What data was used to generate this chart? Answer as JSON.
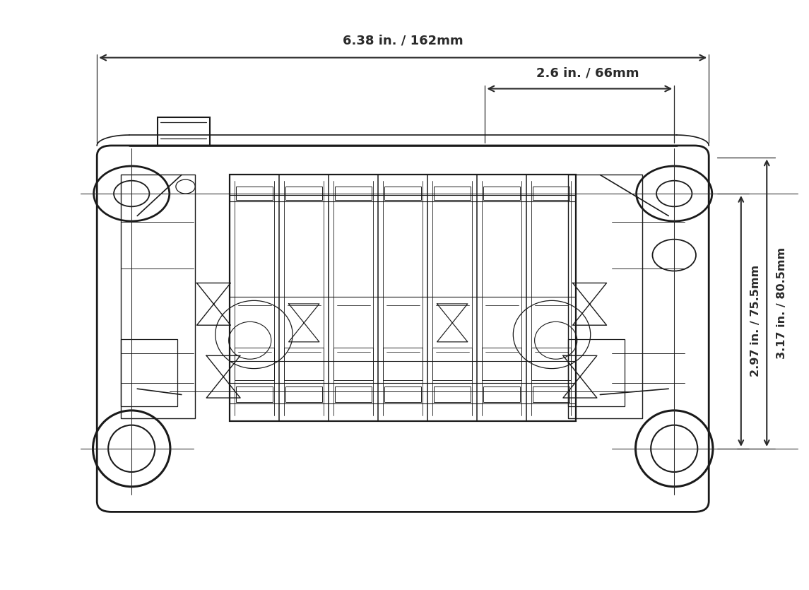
{
  "background_color": "#ffffff",
  "lc": "#1a1a1a",
  "dc": "#2a2a2a",
  "figsize": [
    11.45,
    8.35
  ],
  "dpi": 100,
  "dim1_label": "6.38 in. / 162mm",
  "dim2_label": "2.6 in. / 66mm",
  "vdim1_label": "2.97 in. / 75.5mm",
  "vdim2_label": "3.17 in. / 80.5mm",
  "dim_fontsize": 13,
  "vdim_fontsize": 11.5,
  "fontweight": "bold",
  "EL": 0.118,
  "ER": 0.878,
  "ET": 0.755,
  "EB": 0.13,
  "n_fins": 7
}
